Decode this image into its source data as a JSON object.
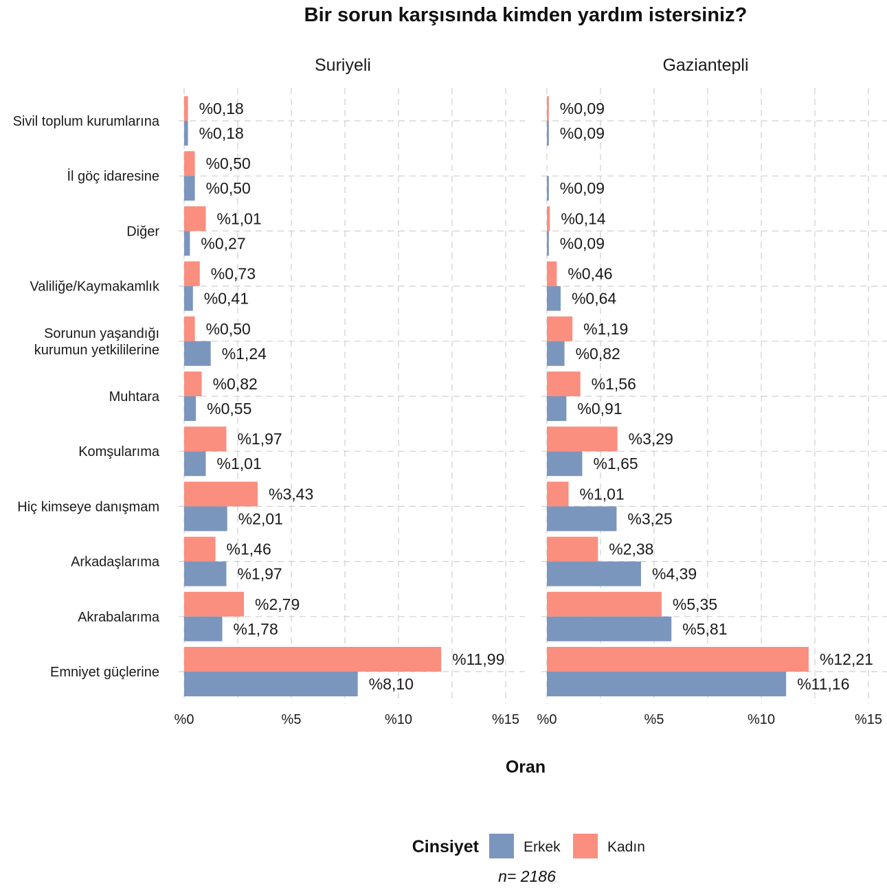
{
  "chart_data": {
    "type": "bar",
    "orientation": "horizontal",
    "title": "Bir sorun karşısında kimden yardım istersiniz?",
    "xlabel": "Oran",
    "xlim": [
      0,
      15
    ],
    "x_ticks": [
      0,
      5,
      10,
      15
    ],
    "tick_prefix": "%",
    "grid": true,
    "categories": [
      "Sivil toplum kurumlarına",
      "İl göç idaresine",
      "Diğer",
      "Valiliğe/Kaymakamlık",
      "Sorunun yaşandığı kurumun yetkililerine",
      "Muhtara",
      "Komşularıma",
      "Hiç kimseye danışmam",
      "Arkadaşlarıma",
      "Akrabalarıma",
      "Emniyet güçlerine"
    ],
    "category_lines": [
      [
        "Sivil toplum kurumlarına"
      ],
      [
        "İl göç idaresine"
      ],
      [
        "Diğer"
      ],
      [
        "Valiliğe/Kaymakamlık"
      ],
      [
        "Sorunun yaşandığı",
        "kurumun yetkililerine"
      ],
      [
        "Muhtara"
      ],
      [
        "Komşularıma"
      ],
      [
        "Hiç kimseye danışmam"
      ],
      [
        "Arkadaşlarıma"
      ],
      [
        "Akrabalarıma"
      ],
      [
        "Emniyet güçlerine"
      ]
    ],
    "legend": {
      "title": "Cinsiyet",
      "position": "bottom",
      "items": [
        {
          "key": "erkek",
          "label": "Erkek",
          "color": "#7b96bd"
        },
        {
          "key": "kadin",
          "label": "Kadın",
          "color": "#fa8e7f"
        }
      ]
    },
    "panels": [
      {
        "title": "Suriyeli",
        "series": [
          {
            "key": "kadin",
            "name": "Kadın",
            "values": [
              0.18,
              0.5,
              1.01,
              0.73,
              0.5,
              0.82,
              1.97,
              3.43,
              1.46,
              2.79,
              11.99
            ],
            "labels": [
              "%0,18",
              "%0,50",
              "%1,01",
              "%0,73",
              "%0,50",
              "%0,82",
              "%1,97",
              "%3,43",
              "%1,46",
              "%2,79",
              "%11,99"
            ]
          },
          {
            "key": "erkek",
            "name": "Erkek",
            "values": [
              0.18,
              0.5,
              0.27,
              0.41,
              1.24,
              0.55,
              1.01,
              2.01,
              1.97,
              1.78,
              8.1
            ],
            "labels": [
              "%0,18",
              "%0,50",
              "%0,27",
              "%0,41",
              "%1,24",
              "%0,55",
              "%1,01",
              "%2,01",
              "%1,97",
              "%1,78",
              "%8,10"
            ]
          }
        ]
      },
      {
        "title": "Gaziantepli",
        "series": [
          {
            "key": "kadin",
            "name": "Kadın",
            "values": [
              0.09,
              null,
              0.14,
              0.46,
              1.19,
              1.56,
              3.29,
              1.01,
              2.38,
              5.35,
              12.21
            ],
            "labels": [
              "%0,09",
              null,
              "%0,14",
              "%0,46",
              "%1,19",
              "%1,56",
              "%3,29",
              "%1,01",
              "%2,38",
              "%5,35",
              "%12,21"
            ]
          },
          {
            "key": "erkek",
            "name": "Erkek",
            "values": [
              0.09,
              0.09,
              0.09,
              0.64,
              0.82,
              0.91,
              1.65,
              3.25,
              4.39,
              5.81,
              11.16
            ],
            "labels": [
              "%0,09",
              "%0,09",
              "%0,09",
              "%0,64",
              "%0,82",
              "%0,91",
              "%1,65",
              "%3,25",
              "%4,39",
              "%5,81",
              "%11,16"
            ]
          }
        ]
      }
    ],
    "caption": "n=  2186"
  }
}
